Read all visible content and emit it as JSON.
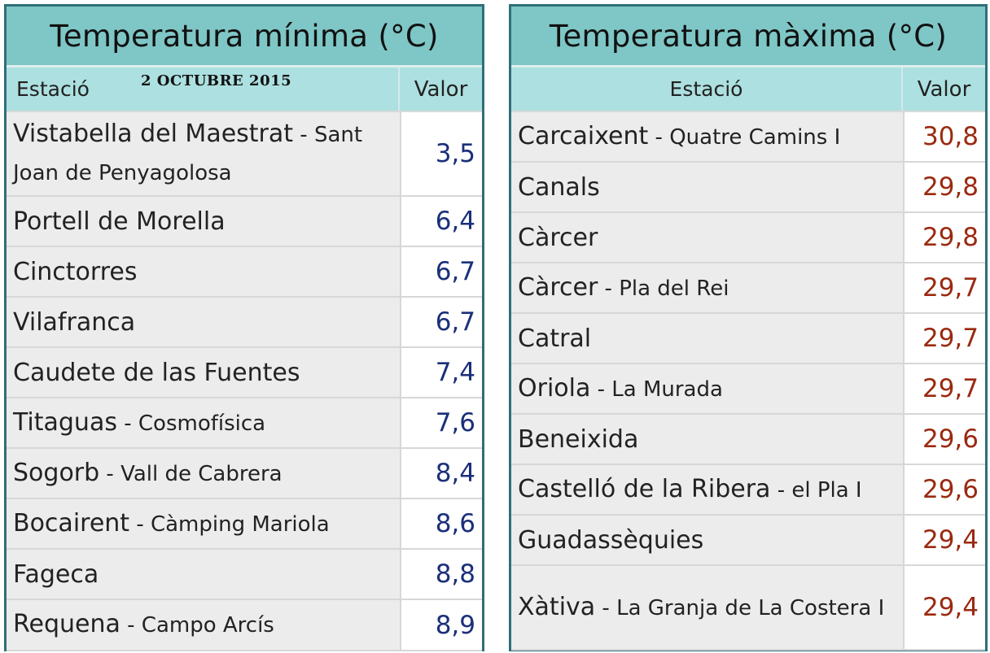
{
  "min": {
    "title": "Temperatura mínima (°C)",
    "col_station": "Estació",
    "col_value": "Valor",
    "date": "2 OCTUBRE 2015",
    "rows": [
      {
        "name": "Vistabella del Maestrat",
        "sub": " - Sant Joan de Penyagolosa",
        "value": "3,5"
      },
      {
        "name": "Portell de Morella",
        "sub": "",
        "value": "6,4"
      },
      {
        "name": "Cinctorres",
        "sub": "",
        "value": "6,7"
      },
      {
        "name": "Vilafranca",
        "sub": "",
        "value": "6,7"
      },
      {
        "name": "Caudete de las Fuentes",
        "sub": "",
        "value": "7,4"
      },
      {
        "name": "Titaguas",
        "sub": " - Cosmofísica",
        "value": "7,6"
      },
      {
        "name": "Sogorb",
        "sub": " - Vall de Cabrera",
        "value": "8,4"
      },
      {
        "name": "Bocairent",
        "sub": " - Càmping Mariola",
        "value": "8,6"
      },
      {
        "name": "Fageca",
        "sub": "",
        "value": "8,8"
      },
      {
        "name": "Requena",
        "sub": " - Campo Arcís",
        "value": "8,9"
      }
    ]
  },
  "max": {
    "title": "Temperatura màxima (°C)",
    "col_station": "Estació",
    "col_value": "Valor",
    "rows": [
      {
        "name": "Carcaixent",
        "sub": " - Quatre Camins I",
        "value": "30,8"
      },
      {
        "name": "Canals",
        "sub": "",
        "value": "29,8"
      },
      {
        "name": "Càrcer",
        "sub": "",
        "value": "29,8"
      },
      {
        "name": "Càrcer",
        "sub": " - Pla del Rei",
        "value": "29,7"
      },
      {
        "name": "Catral",
        "sub": "",
        "value": "29,7"
      },
      {
        "name": "Oriola",
        "sub": " - La Murada",
        "value": "29,7"
      },
      {
        "name": "Beneixida",
        "sub": "",
        "value": "29,6"
      },
      {
        "name": "Castelló de la Ribera",
        "sub": " - el Pla I",
        "value": "29,6"
      },
      {
        "name": "Guadassèquies",
        "sub": "",
        "value": "29,4"
      },
      {
        "name": "Xàtiva",
        "sub": " - La Granja de La Costera I",
        "value": "29,4"
      }
    ]
  }
}
